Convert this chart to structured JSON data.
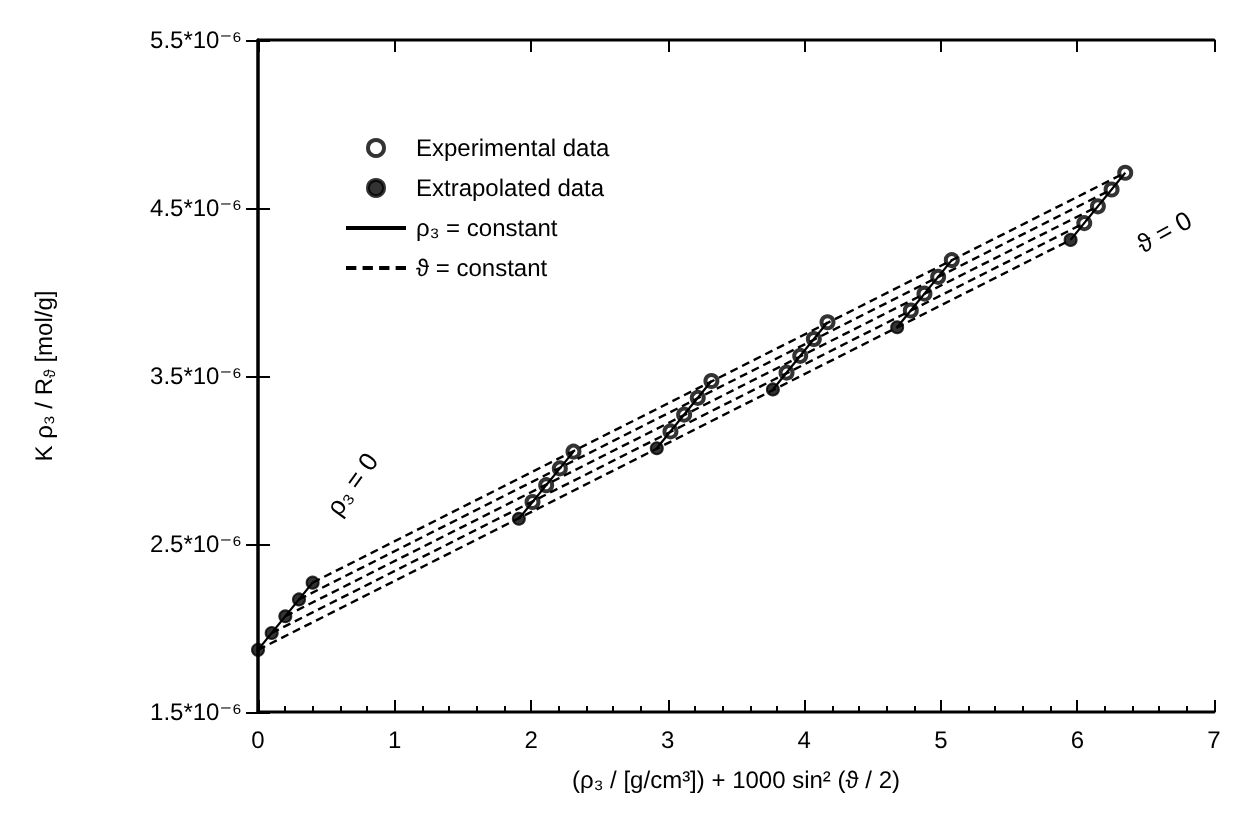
{
  "chart_data": {
    "type": "scatter",
    "xlabel": "(ρ₃ / [g/cm³]) + 1000 sin² (ϑ / 2)",
    "ylabel": "K ρ₃ / R$_{ϑ}$ [mol/g]",
    "xlim": [
      0,
      7
    ],
    "xticks": [
      0,
      1,
      2,
      3,
      4,
      5,
      6,
      7
    ],
    "ylim": [
      1.5e-06,
      5.5e-06
    ],
    "yticks": [
      {
        "value": 1.5e-06,
        "label": "1.5*10⁻⁶"
      },
      {
        "value": 2.5e-06,
        "label": "2.5*10⁻⁶"
      },
      {
        "value": 3.5e-06,
        "label": "3.5*10⁻⁶"
      },
      {
        "value": 4.5e-06,
        "label": "4.5*10⁻⁶"
      },
      {
        "value": 5.5e-06,
        "label": "5.5*10⁻⁶"
      }
    ],
    "grid": false,
    "legend": "top left",
    "marker": "circle",
    "series": [
      {
        "name": "Experimental data",
        "color": "#000000",
        "x": [
          2.01,
          2.11,
          2.21,
          2.31,
          3.02,
          3.12,
          3.22,
          3.32,
          3.87,
          3.97,
          4.07,
          4.17,
          4.78,
          4.88,
          4.98,
          5.08,
          6.05,
          6.15,
          6.25,
          6.35
        ],
        "values": [
          2.75e-06,
          2.85e-06,
          2.95e-06,
          3.05e-06,
          3.17e-06,
          3.27e-06,
          3.37e-06,
          3.47e-06,
          3.52e-06,
          3.62e-06,
          3.72e-06,
          3.82e-06,
          3.89e-06,
          3.99e-06,
          4.09e-06,
          4.19e-06,
          4.41e-06,
          4.51e-06,
          4.61e-06,
          4.71e-06
        ]
      },
      {
        "name": "Extrapolated data",
        "color": "#000000",
        "x": [
          0,
          0.1,
          0.2,
          0.3,
          0.4,
          1.91,
          2.92,
          3.77,
          4.68,
          5.95
        ],
        "values": [
          1.87e-06,
          1.97e-06,
          2.07e-06,
          2.17e-06,
          2.27e-06,
          2.65e-06,
          3.07e-06,
          3.42e-06,
          3.79e-06,
          4.31e-06
        ]
      },
      {
        "name": "ρ₃ = constant",
        "type": "line",
        "marker": "none",
        "line_style": "solid",
        "color": "#000000",
        "x": [
          0,
          0.4
        ],
        "values": [
          1.87e-06,
          2.27e-06
        ]
      },
      {
        "type": "line",
        "marker": "none",
        "line_style": "solid",
        "color": "#000000",
        "x": [
          1.91,
          2.31
        ],
        "values": [
          2.65e-06,
          3.05e-06
        ]
      },
      {
        "type": "line",
        "marker": "none",
        "line_style": "solid",
        "color": "#000000",
        "x": [
          2.92,
          3.32
        ],
        "values": [
          3.07e-06,
          3.47e-06
        ]
      },
      {
        "type": "line",
        "marker": "none",
        "line_style": "solid",
        "color": "#000000",
        "x": [
          3.77,
          4.17
        ],
        "values": [
          3.42e-06,
          3.82e-06
        ]
      },
      {
        "type": "line",
        "marker": "none",
        "line_style": "solid",
        "color": "#000000",
        "x": [
          4.68,
          5.08
        ],
        "values": [
          3.79e-06,
          4.19e-06
        ]
      },
      {
        "type": "line",
        "marker": "none",
        "line_style": "solid",
        "color": "#000000",
        "x": [
          5.95,
          6.35
        ],
        "values": [
          4.31e-06,
          4.71e-06
        ]
      },
      {
        "name": "ϑ = constant",
        "type": "line",
        "marker": "none",
        "line_style": "dashed",
        "color": "#000000",
        "x": [
          0,
          5.95
        ],
        "values": [
          1.87e-06,
          4.31e-06
        ]
      },
      {
        "type": "line",
        "marker": "none",
        "line_style": "dashed",
        "color": "#000000",
        "x": [
          0.1,
          6.05
        ],
        "values": [
          1.97e-06,
          4.41e-06
        ]
      },
      {
        "type": "line",
        "marker": "none",
        "line_style": "dashed",
        "color": "#000000",
        "x": [
          0.2,
          6.15
        ],
        "values": [
          2.07e-06,
          4.51e-06
        ]
      },
      {
        "type": "line",
        "marker": "none",
        "line_style": "dashed",
        "color": "#000000",
        "x": [
          0.3,
          6.25
        ],
        "values": [
          2.17e-06,
          4.61e-06
        ]
      },
      {
        "type": "line",
        "marker": "none",
        "line_style": "dashed",
        "color": "#000000",
        "x": [
          0.4,
          6.35
        ],
        "values": [
          2.27e-06,
          4.71e-06
        ]
      }
    ],
    "annotations": [
      "ρ₃ = 0",
      "ϑ = 0"
    ]
  }
}
